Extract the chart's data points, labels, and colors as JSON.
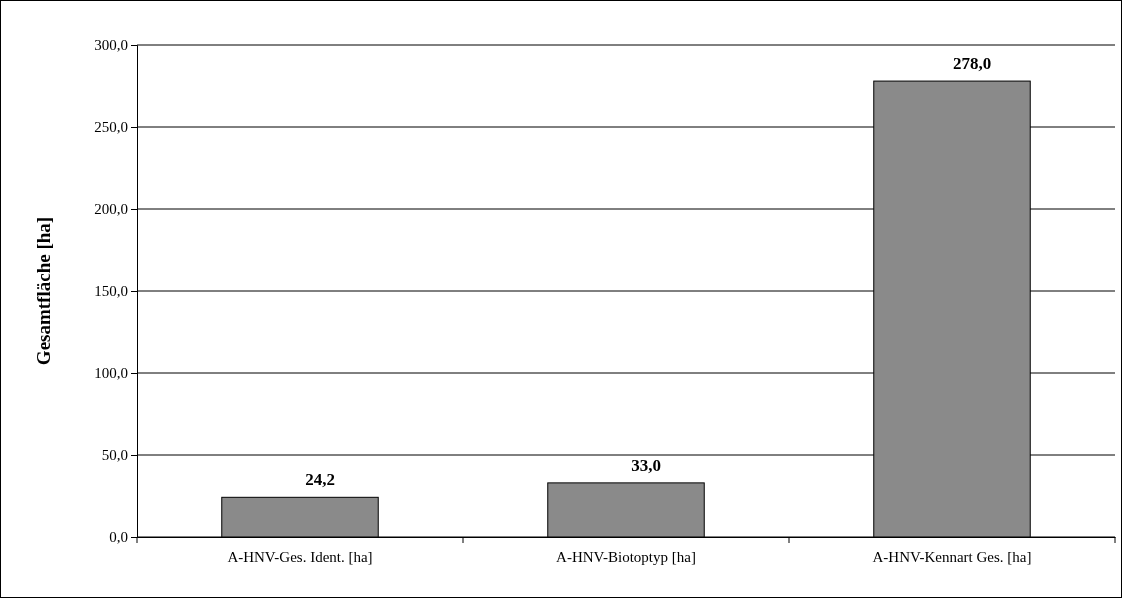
{
  "chart_data": {
    "type": "bar",
    "ylabel": "Gesamtfläche [ha]",
    "categories": [
      "A-HNV-Ges. Ident. [ha]",
      "A-HNV-Biotoptyp [ha]",
      "A-HNV-Kennart Ges. [ha]"
    ],
    "values": [
      24.2,
      33.0,
      278.0
    ],
    "value_labels": [
      "24,2",
      "33,0",
      "278,0"
    ],
    "color": "#8a8a8a",
    "ylim": [
      0,
      300
    ],
    "yticks": [
      {
        "value": 0,
        "label": "0,0"
      },
      {
        "value": 50,
        "label": "50,0"
      },
      {
        "value": 100,
        "label": "100,0"
      },
      {
        "value": 150,
        "label": "150,0"
      },
      {
        "value": 200,
        "label": "200,0"
      },
      {
        "value": 250,
        "label": "250,0"
      },
      {
        "value": 300,
        "label": "300,0"
      }
    ],
    "grid": "y"
  }
}
